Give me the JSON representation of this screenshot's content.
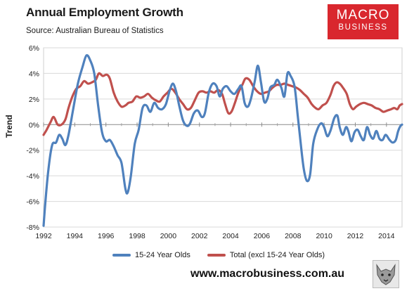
{
  "header": {
    "title": "Annual Employment Growth",
    "subtitle": "Source: Australian Bureau of Statistics"
  },
  "logo": {
    "line1": "MACRO",
    "line2": "BUSINESS",
    "color": "#d9272e"
  },
  "footer": {
    "website": "www.macrobusiness.com.au",
    "mascot": "wolf-icon"
  },
  "chart_data": {
    "type": "line",
    "ylabel": "Trend",
    "xlabel": "",
    "xlim": [
      1992,
      2015
    ],
    "ylim": [
      -8,
      6
    ],
    "x_ticks": [
      "1992",
      "1994",
      "1996",
      "1998",
      "2000",
      "2002",
      "2004",
      "2006",
      "2008",
      "2010",
      "2012",
      "2014"
    ],
    "y_ticks": [
      "6%",
      "4%",
      "2%",
      "0%",
      "-2%",
      "-4%",
      "-6%",
      "-8%"
    ],
    "grid": "horizontal",
    "legend": "bottom",
    "series": [
      {
        "name": "15-24 Year Olds",
        "color": "#4f81bd",
        "points": [
          [
            1992.0,
            -7.9
          ],
          [
            1992.1,
            -6.3
          ],
          [
            1992.3,
            -3.6
          ],
          [
            1992.55,
            -1.6
          ],
          [
            1992.8,
            -1.4
          ],
          [
            1993.0,
            -0.8
          ],
          [
            1993.2,
            -1.1
          ],
          [
            1993.4,
            -1.6
          ],
          [
            1993.6,
            -0.8
          ],
          [
            1993.9,
            1.2
          ],
          [
            1994.2,
            3.2
          ],
          [
            1994.5,
            4.5
          ],
          [
            1994.75,
            5.4
          ],
          [
            1995.0,
            5.0
          ],
          [
            1995.25,
            4.0
          ],
          [
            1995.5,
            1.5
          ],
          [
            1995.75,
            -0.6
          ],
          [
            1996.0,
            -1.3
          ],
          [
            1996.25,
            -1.2
          ],
          [
            1996.5,
            -1.7
          ],
          [
            1996.75,
            -2.4
          ],
          [
            1997.0,
            -3.0
          ],
          [
            1997.25,
            -5.0
          ],
          [
            1997.4,
            -5.3
          ],
          [
            1997.6,
            -4.0
          ],
          [
            1997.85,
            -1.5
          ],
          [
            1998.1,
            -0.4
          ],
          [
            1998.35,
            1.3
          ],
          [
            1998.6,
            1.5
          ],
          [
            1998.85,
            1.0
          ],
          [
            1999.1,
            1.7
          ],
          [
            1999.35,
            1.3
          ],
          [
            1999.6,
            1.2
          ],
          [
            1999.85,
            1.6
          ],
          [
            2000.1,
            2.7
          ],
          [
            2000.3,
            3.2
          ],
          [
            2000.5,
            2.6
          ],
          [
            2000.7,
            1.5
          ],
          [
            2000.95,
            0.3
          ],
          [
            2001.2,
            -0.1
          ],
          [
            2001.4,
            0.1
          ],
          [
            2001.65,
            0.9
          ],
          [
            2001.9,
            1.1
          ],
          [
            2002.15,
            0.6
          ],
          [
            2002.35,
            0.9
          ],
          [
            2002.6,
            2.5
          ],
          [
            2002.85,
            3.2
          ],
          [
            2003.1,
            3.0
          ],
          [
            2003.3,
            2.2
          ],
          [
            2003.5,
            2.8
          ],
          [
            2003.75,
            3.0
          ],
          [
            2004.0,
            2.6
          ],
          [
            2004.25,
            2.4
          ],
          [
            2004.5,
            2.8
          ],
          [
            2004.7,
            3.0
          ],
          [
            2004.9,
            1.7
          ],
          [
            2005.1,
            1.4
          ],
          [
            2005.3,
            2.0
          ],
          [
            2005.55,
            3.4
          ],
          [
            2005.75,
            4.6
          ],
          [
            2005.95,
            3.3
          ],
          [
            2006.15,
            1.8
          ],
          [
            2006.35,
            2.0
          ],
          [
            2006.55,
            2.9
          ],
          [
            2006.8,
            3.1
          ],
          [
            2007.0,
            3.5
          ],
          [
            2007.25,
            2.9
          ],
          [
            2007.45,
            2.2
          ],
          [
            2007.65,
            4.0
          ],
          [
            2007.85,
            3.8
          ],
          [
            2008.1,
            3.0
          ],
          [
            2008.3,
            0.8
          ],
          [
            2008.5,
            -1.5
          ],
          [
            2008.7,
            -3.5
          ],
          [
            2008.9,
            -4.4
          ],
          [
            2009.1,
            -3.9
          ],
          [
            2009.3,
            -1.5
          ],
          [
            2009.55,
            -0.4
          ],
          [
            2009.8,
            0.1
          ],
          [
            2010.0,
            -0.2
          ],
          [
            2010.2,
            -0.9
          ],
          [
            2010.4,
            -0.5
          ],
          [
            2010.65,
            0.5
          ],
          [
            2010.85,
            0.7
          ],
          [
            2011.0,
            -0.2
          ],
          [
            2011.2,
            -0.8
          ],
          [
            2011.4,
            -0.2
          ],
          [
            2011.55,
            -0.5
          ],
          [
            2011.75,
            -1.3
          ],
          [
            2011.95,
            -0.6
          ],
          [
            2012.15,
            -0.4
          ],
          [
            2012.35,
            -0.9
          ],
          [
            2012.55,
            -1.2
          ],
          [
            2012.75,
            -0.2
          ],
          [
            2012.95,
            -0.8
          ],
          [
            2013.15,
            -1.1
          ],
          [
            2013.35,
            -0.5
          ],
          [
            2013.55,
            -1.1
          ],
          [
            2013.75,
            -1.2
          ],
          [
            2013.95,
            -0.8
          ],
          [
            2014.2,
            -1.2
          ],
          [
            2014.4,
            -1.4
          ],
          [
            2014.6,
            -1.2
          ],
          [
            2014.75,
            -0.5
          ],
          [
            2014.9,
            -0.1
          ],
          [
            2015.0,
            0.0
          ]
        ]
      },
      {
        "name": "Total (excl 15-24 Year Olds)",
        "color": "#c0504d",
        "points": [
          [
            1992.0,
            -0.8
          ],
          [
            1992.2,
            -0.4
          ],
          [
            1992.45,
            0.2
          ],
          [
            1992.65,
            0.6
          ],
          [
            1992.9,
            0.0
          ],
          [
            1993.15,
            0.0
          ],
          [
            1993.4,
            0.4
          ],
          [
            1993.6,
            1.3
          ],
          [
            1993.85,
            2.2
          ],
          [
            1994.1,
            2.8
          ],
          [
            1994.35,
            3.0
          ],
          [
            1994.6,
            3.4
          ],
          [
            1994.85,
            3.2
          ],
          [
            1995.1,
            3.3
          ],
          [
            1995.35,
            3.5
          ],
          [
            1995.55,
            4.0
          ],
          [
            1995.8,
            3.8
          ],
          [
            1996.05,
            3.9
          ],
          [
            1996.25,
            3.6
          ],
          [
            1996.5,
            2.5
          ],
          [
            1996.75,
            1.8
          ],
          [
            1997.0,
            1.4
          ],
          [
            1997.25,
            1.5
          ],
          [
            1997.45,
            1.7
          ],
          [
            1997.7,
            1.8
          ],
          [
            1997.95,
            2.2
          ],
          [
            1998.2,
            2.1
          ],
          [
            1998.45,
            2.2
          ],
          [
            1998.7,
            2.4
          ],
          [
            1998.95,
            2.1
          ],
          [
            1999.2,
            1.9
          ],
          [
            1999.45,
            1.8
          ],
          [
            1999.7,
            2.2
          ],
          [
            1999.95,
            2.5
          ],
          [
            2000.2,
            2.8
          ],
          [
            2000.45,
            2.5
          ],
          [
            2000.7,
            2.0
          ],
          [
            2000.95,
            1.6
          ],
          [
            2001.2,
            1.2
          ],
          [
            2001.45,
            1.3
          ],
          [
            2001.7,
            1.9
          ],
          [
            2001.95,
            2.5
          ],
          [
            2002.2,
            2.6
          ],
          [
            2002.45,
            2.5
          ],
          [
            2002.7,
            2.6
          ],
          [
            2002.95,
            2.5
          ],
          [
            2003.2,
            2.7
          ],
          [
            2003.45,
            2.4
          ],
          [
            2003.65,
            1.6
          ],
          [
            2003.85,
            0.9
          ],
          [
            2004.05,
            1.0
          ],
          [
            2004.25,
            1.6
          ],
          [
            2004.5,
            2.5
          ],
          [
            2004.75,
            3.1
          ],
          [
            2004.95,
            3.6
          ],
          [
            2005.2,
            3.5
          ],
          [
            2005.45,
            3.0
          ],
          [
            2005.7,
            2.6
          ],
          [
            2005.95,
            2.4
          ],
          [
            2006.2,
            2.5
          ],
          [
            2006.45,
            2.6
          ],
          [
            2006.7,
            2.9
          ],
          [
            2006.95,
            3.1
          ],
          [
            2007.2,
            3.1
          ],
          [
            2007.45,
            3.2
          ],
          [
            2007.7,
            3.1
          ],
          [
            2007.95,
            3.0
          ],
          [
            2008.2,
            2.9
          ],
          [
            2008.45,
            2.7
          ],
          [
            2008.7,
            2.4
          ],
          [
            2008.95,
            2.1
          ],
          [
            2009.2,
            1.6
          ],
          [
            2009.45,
            1.3
          ],
          [
            2009.65,
            1.2
          ],
          [
            2009.9,
            1.5
          ],
          [
            2010.15,
            1.7
          ],
          [
            2010.4,
            2.3
          ],
          [
            2010.6,
            3.0
          ],
          [
            2010.8,
            3.3
          ],
          [
            2011.0,
            3.2
          ],
          [
            2011.2,
            2.9
          ],
          [
            2011.45,
            2.4
          ],
          [
            2011.65,
            1.6
          ],
          [
            2011.85,
            1.2
          ],
          [
            2012.05,
            1.4
          ],
          [
            2012.3,
            1.6
          ],
          [
            2012.55,
            1.7
          ],
          [
            2012.8,
            1.6
          ],
          [
            2013.05,
            1.5
          ],
          [
            2013.3,
            1.3
          ],
          [
            2013.55,
            1.2
          ],
          [
            2013.8,
            1.0
          ],
          [
            2014.05,
            1.1
          ],
          [
            2014.3,
            1.2
          ],
          [
            2014.5,
            1.3
          ],
          [
            2014.7,
            1.2
          ],
          [
            2014.85,
            1.5
          ],
          [
            2015.0,
            1.6
          ]
        ]
      }
    ]
  }
}
